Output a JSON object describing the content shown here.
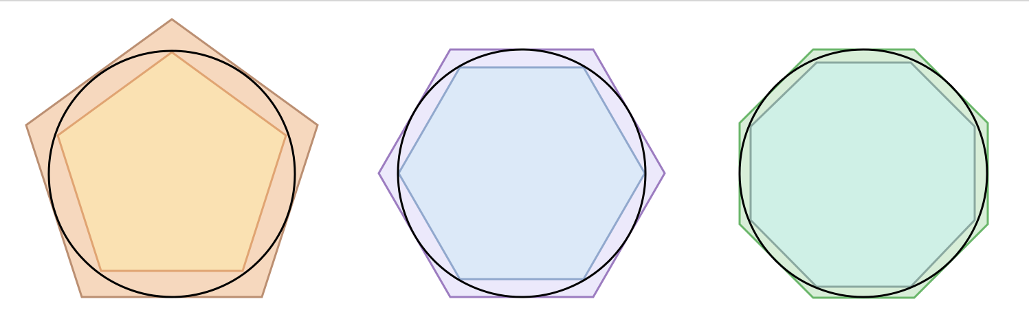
{
  "figures": [
    {
      "id": "pentagon",
      "sides": 5,
      "outer_fill": "#f6d8be",
      "outer_stroke": "#bb8f72",
      "inner_fill": "#fae1b2",
      "inner_stroke": "#e0a472",
      "circle_stroke": "#000000"
    },
    {
      "id": "hexagon",
      "sides": 6,
      "outer_fill": "#ece9fb",
      "outer_stroke": "#9c7cc0",
      "inner_fill": "#dce9f8",
      "inner_stroke": "#91a8cd",
      "circle_stroke": "#000000"
    },
    {
      "id": "octagon",
      "sides": 8,
      "outer_fill": "#d8eed8",
      "outer_stroke": "#6ab66a",
      "inner_fill": "#cff0e6",
      "inner_stroke": "#8aa8a0",
      "circle_stroke": "#000000"
    }
  ]
}
